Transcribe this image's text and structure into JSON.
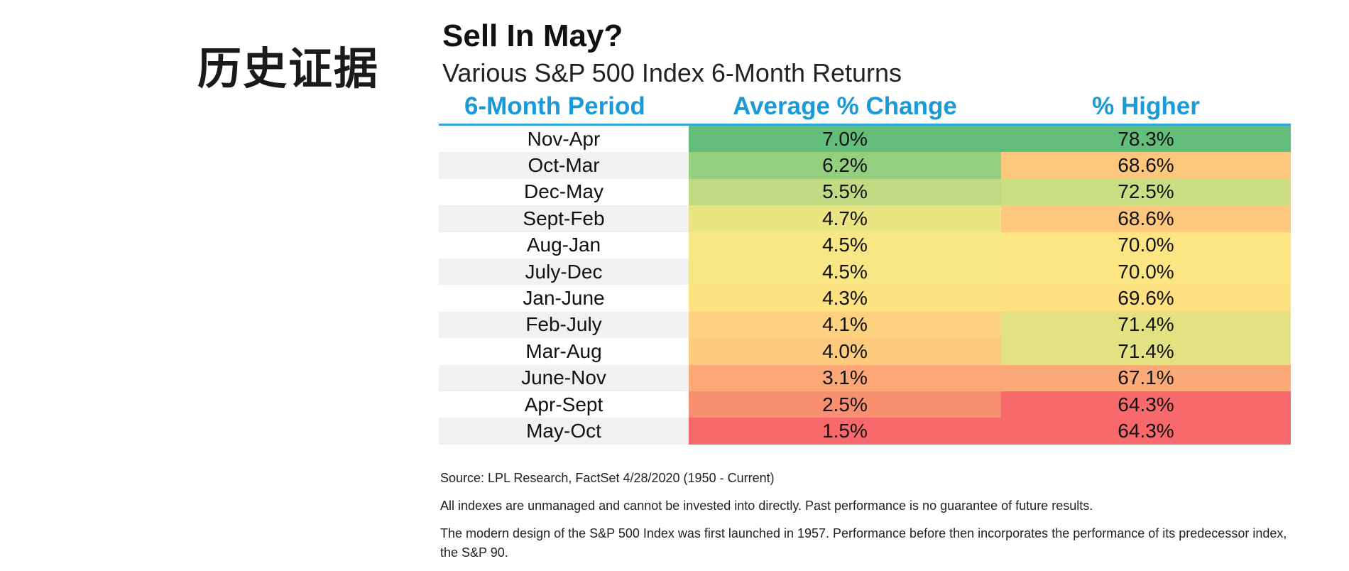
{
  "page_heading": "历史证据",
  "chart": {
    "title": "Sell In May?",
    "subtitle": "Various S&P 500 Index 6-Month Returns",
    "headers": {
      "period": "6-Month Period",
      "avg": "Average % Change",
      "higher": "% Higher"
    },
    "rows": [
      {
        "period": "Nov-Apr",
        "avg": "7.0%",
        "higher": "78.3%",
        "avg_color": "#63be7b",
        "higher_color": "#63be7b"
      },
      {
        "period": "Oct-Mar",
        "avg": "6.2%",
        "higher": "68.6%",
        "avg_color": "#94ce7f",
        "higher_color": "#fdc77d"
      },
      {
        "period": "Dec-May",
        "avg": "5.5%",
        "higher": "72.5%",
        "avg_color": "#c1da81",
        "higher_color": "#cadd82"
      },
      {
        "period": "Sept-Feb",
        "avg": "4.7%",
        "higher": "68.6%",
        "avg_color": "#ebe482",
        "higher_color": "#fdc77d"
      },
      {
        "period": "Aug-Jan",
        "avg": "4.5%",
        "higher": "70.0%",
        "avg_color": "#f8e784",
        "higher_color": "#fbe683"
      },
      {
        "period": "July-Dec",
        "avg": "4.5%",
        "higher": "70.0%",
        "avg_color": "#f8e784",
        "higher_color": "#fbe683"
      },
      {
        "period": "Jan-June",
        "avg": "4.3%",
        "higher": "69.6%",
        "avg_color": "#fee180",
        "higher_color": "#fee080"
      },
      {
        "period": "Feb-July",
        "avg": "4.1%",
        "higher": "71.4%",
        "avg_color": "#fdd17f",
        "higher_color": "#e2e283"
      },
      {
        "period": "Mar-Aug",
        "avg": "4.0%",
        "higher": "71.4%",
        "avg_color": "#fdcb7e",
        "higher_color": "#e2e283"
      },
      {
        "period": "June-Nov",
        "avg": "3.1%",
        "higher": "67.1%",
        "avg_color": "#fba776",
        "higher_color": "#fbaa77"
      },
      {
        "period": "Apr-Sept",
        "avg": "2.5%",
        "higher": "64.3%",
        "avg_color": "#f98f71",
        "higher_color": "#f8696b"
      },
      {
        "period": "May-Oct",
        "avg": "1.5%",
        "higher": "64.3%",
        "avg_color": "#f8696b",
        "higher_color": "#f8696b"
      }
    ]
  },
  "footnotes": {
    "source": "Source: LPL Research, FactSet 4/28/2020 (1950 - Current)",
    "disclaimer": "All indexes are unmanaged and cannot be invested into directly. Past performance is no guarantee of future results.",
    "design_note": "The modern design of the S&P 500 Index was first launched in 1957. Performance before then incorporates the performance of its predecessor index, the S&P 90."
  }
}
